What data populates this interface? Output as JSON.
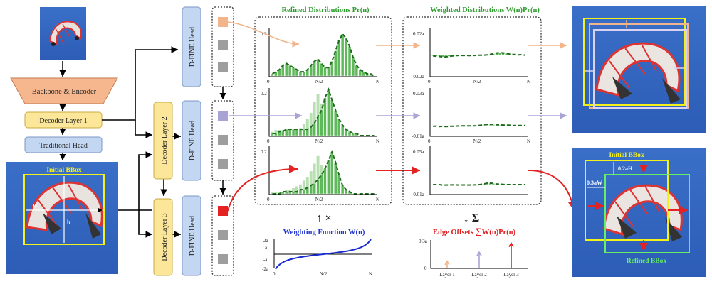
{
  "pipeline": {
    "backbone": "Backbone & Encoder",
    "decoder1": "Decoder Layer 1",
    "decoder2": "Decoder Layer 2",
    "decoder3": "Decoder Layer 3",
    "traditional_head": "Traditional Head",
    "dfine_head": "D-FINE Head"
  },
  "titles": {
    "refined": "Refined Distributions Pr(n)",
    "weighted": "Weighted Distributions W(n)Pr(n)",
    "weighting": "Weighting Function W(n)",
    "edge_offsets_prefix": "Edge Offsets ",
    "edge_offsets_suffix": "W(n)Pr(n)"
  },
  "symbols": {
    "times": "×",
    "sum": "Σ",
    "sum_big": "∑"
  },
  "ticks": {
    "refined_y": "0.2",
    "x0": "0",
    "xmid": "N/2",
    "xN": "N",
    "weighted1_top": "0.02a",
    "weighted1_bottom": "-0.02a",
    "weighted2_top": "0.03a",
    "weighted2_bottom": "-0.01a",
    "weighted3_top": "0.05a",
    "weighted3_bottom": "-0.01a",
    "wf_2a": "2a",
    "wf_a": "a",
    "wf_ma": "-a",
    "wf_m2a": "-2a",
    "edge_top": "0.3a",
    "edge_zero": "0",
    "layer1": "Layer 1",
    "layer2": "Layer 2",
    "layer3": "Layer 3"
  },
  "image_labels": {
    "initial_bbox": "Initial BBox",
    "w": "w",
    "h": "h",
    "refined_bbox": "Refined BBox",
    "offset_h": "0.2aH",
    "offset_w": "0.3aW"
  },
  "colors": {
    "layer1": "#f2b48a",
    "layer2": "#a9a3d6",
    "layer3": "#e52222",
    "green": "#2f9e2f",
    "blue_curve": "#1a2bd0"
  },
  "chart_data": [
    {
      "type": "bar",
      "name": "refined_layer1",
      "x_range": [
        0,
        1
      ],
      "ylim": [
        0,
        0.2
      ],
      "bins_head": [
        0.01,
        0.02,
        0.03,
        0.05,
        0.06,
        0.05,
        0.04,
        0.03,
        0.02,
        0.02,
        0.03,
        0.05,
        0.07,
        0.08,
        0.06,
        0.04,
        0.04,
        0.07,
        0.12,
        0.17,
        0.2,
        0.18,
        0.14,
        0.09,
        0.05,
        0.03,
        0.02,
        0.01,
        0.01,
        0.0
      ]
    },
    {
      "type": "bar",
      "name": "refined_layer2",
      "x_range": [
        0,
        1
      ],
      "ylim": [
        0,
        0.2
      ],
      "bins_head": [
        0.01,
        0.01,
        0.02,
        0.02,
        0.03,
        0.03,
        0.03,
        0.03,
        0.03,
        0.03,
        0.03,
        0.04,
        0.06,
        0.09,
        0.12,
        0.18,
        0.22,
        0.17,
        0.12,
        0.08,
        0.05,
        0.03,
        0.02,
        0.01,
        0.01,
        0.0,
        0.0,
        0.0,
        0.0,
        0.0
      ]
    },
    {
      "type": "bar",
      "name": "refined_layer3",
      "x_range": [
        0,
        1
      ],
      "ylim": [
        0,
        0.2
      ],
      "bins_head": [
        0.0,
        0.0,
        0.0,
        0.01,
        0.01,
        0.01,
        0.01,
        0.01,
        0.02,
        0.02,
        0.03,
        0.04,
        0.05,
        0.07,
        0.09,
        0.12,
        0.16,
        0.2,
        0.15,
        0.09,
        0.04,
        0.02,
        0.01,
        0.0,
        0.0,
        0.0,
        0.0,
        0.0,
        0.0,
        0.0
      ]
    },
    {
      "type": "line",
      "name": "weighting_function",
      "x_range": [
        0,
        1
      ],
      "ylim": [
        -2,
        2
      ]
    },
    {
      "type": "bar",
      "name": "edge_offsets",
      "categories": [
        "Layer 1",
        "Layer 2",
        "Layer 3"
      ],
      "values": [
        0.08,
        0.18,
        0.28
      ],
      "ylim": [
        0,
        0.3
      ]
    }
  ]
}
